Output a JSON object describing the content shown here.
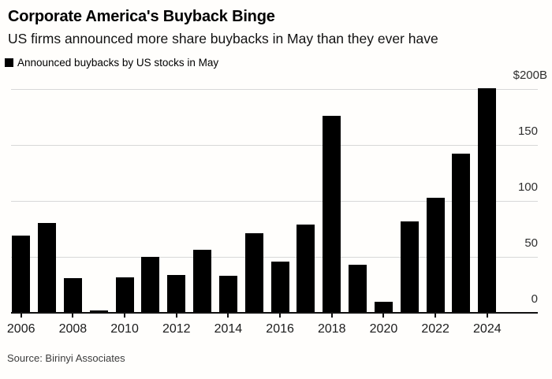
{
  "header": {
    "title": "Corporate America's Buyback Binge",
    "subtitle": "US firms announced more share buybacks in May than they ever have"
  },
  "legend": {
    "label": "Announced buybacks by US stocks in May",
    "swatch_color": "#000000"
  },
  "source": "Source: Birinyi Associates",
  "colors": {
    "bar": "#000000",
    "gridline": "#d8d8d8",
    "axis": "#111111",
    "background": "#fffefc",
    "text": "#000000"
  },
  "chart_data": {
    "type": "bar",
    "title": "Corporate America's Buyback Binge",
    "subtitle": "US firms announced more share buybacks in May than they ever have",
    "series_label": "Announced buybacks by US stocks in May",
    "unit": "USD billions",
    "categories": [
      2006,
      2007,
      2008,
      2009,
      2010,
      2011,
      2012,
      2013,
      2014,
      2015,
      2016,
      2017,
      2018,
      2019,
      2020,
      2021,
      2022,
      2023,
      2024
    ],
    "values": [
      69,
      80,
      31,
      2,
      32,
      50,
      34,
      56,
      33,
      71,
      46,
      79,
      176,
      43,
      10,
      82,
      103,
      142,
      201
    ],
    "ylim": [
      0,
      200
    ],
    "yticks": [
      0,
      50,
      100,
      150,
      200
    ],
    "ytick_labels": [
      "0",
      "50",
      "100",
      "150",
      "$200B"
    ],
    "xtick_labels": [
      "2006",
      "2008",
      "2010",
      "2012",
      "2014",
      "2016",
      "2018",
      "2020",
      "2022",
      "2024"
    ],
    "grid": "horizontal",
    "legend_position": "top-left",
    "y_axis_side": "right",
    "source": "Source: Birinyi Associates"
  }
}
